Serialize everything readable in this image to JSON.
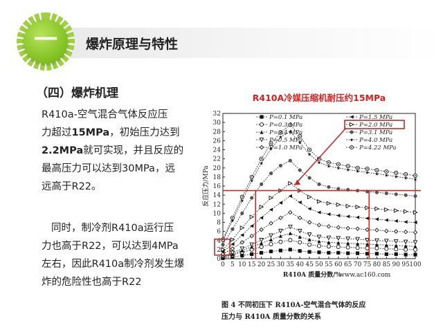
{
  "header": {
    "badge_text": "一",
    "title": "爆炸原理与特性"
  },
  "section": {
    "subtitle": "（四）爆炸机理"
  },
  "body": {
    "para1": [
      [
        {
          "t": "R410a-空气混合气体反应压"
        }
      ],
      [
        {
          "t": "力超过"
        },
        {
          "t": "15MPa",
          "b": true
        },
        {
          "t": "，初始压力达到"
        }
      ],
      [
        {
          "t": "2.2MPa",
          "b": true
        },
        {
          "t": "就可实现，并且反应的"
        }
      ],
      [
        {
          "t": "最高压力可以达到30MPa，远"
        }
      ],
      [
        {
          "t": "远高于R22。"
        }
      ]
    ],
    "para2": [
      [
        {
          "t": "同时，制冷剂R410a运行压"
        }
      ],
      [
        {
          "t": "力也高于R22，可以达到4MPa"
        }
      ],
      [
        {
          "t": "左右，因此R410a制冷剂发生爆"
        }
      ],
      [
        {
          "t": "炸的危险性也高于R22"
        }
      ]
    ]
  },
  "chart_data": {
    "type": "line",
    "title": "R410A冷媒压缩机耐压约15MPa",
    "title_color": "#d62020",
    "xlabel": "R410A 质量分数/%",
    "ylabel": "反应压力/MPa",
    "xlim": [
      0,
      100
    ],
    "ylim": [
      0,
      32
    ],
    "xticks": [
      0,
      5,
      10,
      15,
      20,
      25,
      30,
      35,
      40,
      45,
      50,
      55,
      60,
      65,
      70,
      75,
      80,
      85,
      90,
      95,
      100
    ],
    "yticks": [
      0,
      2,
      4,
      6,
      8,
      10,
      12,
      14,
      16,
      18,
      20,
      22,
      24,
      26,
      28,
      30,
      32
    ],
    "x": [
      0,
      5,
      10,
      15,
      20,
      25,
      30,
      35,
      40,
      45,
      50,
      55,
      60,
      65,
      70,
      75,
      80,
      85,
      90,
      95,
      100
    ],
    "series": [
      {
        "name": "P=0.1 MPa",
        "marker": "square",
        "values": [
          0.1,
          0.4,
          0.7,
          1.0,
          1.3,
          1.6,
          1.8,
          2.0,
          1.7,
          1.5,
          1.4,
          1.3,
          1.3,
          1.2,
          1.2,
          1.1,
          1.1,
          1.0,
          1.0,
          0.9,
          0.9
        ]
      },
      {
        "name": "P=0.3 MPa",
        "marker": "circle",
        "values": [
          0.3,
          0.8,
          1.4,
          2.0,
          2.6,
          3.2,
          3.7,
          4.1,
          3.6,
          3.1,
          2.8,
          2.7,
          2.6,
          2.5,
          2.4,
          2.3,
          2.3,
          2.2,
          2.1,
          2.0,
          2.0
        ]
      },
      {
        "name": "P=0.4 MPa",
        "marker": "triangle",
        "values": [
          0.4,
          1.0,
          1.8,
          2.6,
          3.4,
          4.2,
          5.0,
          5.6,
          4.8,
          4.2,
          3.8,
          3.6,
          3.5,
          3.4,
          3.3,
          3.2,
          3.1,
          3.0,
          2.9,
          2.8,
          2.7
        ]
      },
      {
        "name": "P=0.5 MPa",
        "marker": "triangle-down",
        "values": [
          0.5,
          1.3,
          2.2,
          3.1,
          4.1,
          5.1,
          6.1,
          7.0,
          6.1,
          5.3,
          4.8,
          4.6,
          4.5,
          4.4,
          4.3,
          4.1,
          4.0,
          3.9,
          3.8,
          3.7,
          3.6
        ]
      },
      {
        "name": "P=1.0 MPa",
        "marker": "diamond",
        "values": [
          1.0,
          2.2,
          3.6,
          5.0,
          6.4,
          7.8,
          9.0,
          10.2,
          9.0,
          8.0,
          7.4,
          7.1,
          6.9,
          6.7,
          6.6,
          6.4,
          6.3,
          6.1,
          6.0,
          5.9,
          5.8
        ]
      },
      {
        "name": "P=1.5 MPa",
        "marker": "triangle-left",
        "values": [
          1.5,
          3.2,
          5.2,
          7.2,
          9.0,
          10.8,
          12.3,
          13.8,
          12.4,
          11.0,
          10.2,
          9.8,
          9.5,
          9.3,
          9.1,
          8.9,
          8.7,
          8.5,
          8.3,
          8.1,
          8.0
        ]
      },
      {
        "name": "P=2.0 MPa",
        "marker": "triangle-right",
        "values": [
          2.0,
          4.2,
          6.8,
          9.2,
          11.4,
          13.4,
          15.0,
          16.6,
          15.0,
          13.6,
          12.6,
          12.2,
          11.9,
          11.6,
          11.4,
          11.2,
          11.0,
          10.8,
          10.6,
          10.4,
          10.2
        ]
      },
      {
        "name": "P=3.1 MPa",
        "marker": "hexagon",
        "values": [
          3.1,
          6.5,
          10.0,
          13.4,
          16.4,
          18.8,
          20.5,
          21.6,
          19.5,
          17.8,
          16.4,
          15.8,
          15.4,
          15.2,
          15.0,
          14.8,
          14.6,
          14.4,
          14.2,
          14.0,
          13.8
        ]
      },
      {
        "name": "P=4.0 MPa",
        "marker": "star",
        "values": [
          4.0,
          8.4,
          12.8,
          17.2,
          21.0,
          24.2,
          26.8,
          28.0,
          25.6,
          23.0,
          21.2,
          20.4,
          20.0,
          19.6,
          19.3,
          19.0,
          18.7,
          18.4,
          18.1,
          17.8,
          17.5
        ]
      },
      {
        "name": "P=4.22 MPa",
        "marker": "circle-dot",
        "values": [
          4.2,
          9.0,
          13.6,
          18.0,
          22.0,
          25.4,
          27.8,
          29.5,
          27.0,
          24.0,
          22.0,
          21.2,
          20.8,
          20.4,
          20.0,
          19.8,
          19.5,
          19.2,
          18.9,
          18.6,
          18.3
        ]
      }
    ],
    "annotations": {
      "threshold_line_y": 15,
      "threshold_vline_x": [
        17,
        76
      ],
      "highlight_color": "#c62828"
    },
    "watermark": "www.ac160.com",
    "caption_lines": [
      "图 4    不同初压下 R410A-空气混合气体的反应",
      "压力与 R410A 质量分数的关系"
    ]
  }
}
